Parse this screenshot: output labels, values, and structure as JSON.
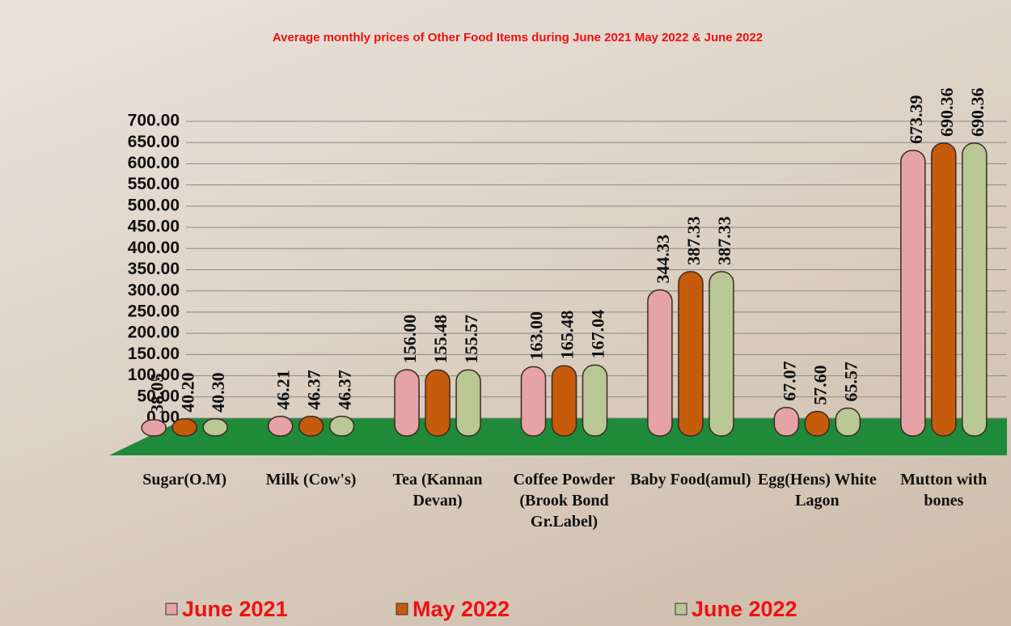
{
  "chart_data": {
    "type": "bar",
    "title": "Average monthly prices of Other Food Items during  June 2021  May 2022  &  June 2022",
    "categories": [
      "Sugar(O.M)",
      "Milk (Cow's)",
      "Tea (Kannan Devan)",
      "Coffee Powder (Brook Bond Gr.Label)",
      "Baby Food(amul)",
      "Egg(Hens) White Lagon",
      "Mutton with bones"
    ],
    "series": [
      {
        "name": "June 2021",
        "color": "#e6a3a6",
        "values": [
          38.05,
          46.21,
          156,
          163,
          344.33,
          67.07,
          673.39
        ],
        "value_labels": [
          "38.05",
          "46.21",
          "156.00",
          "163.00",
          "344.33",
          "67.07",
          "673.39"
        ]
      },
      {
        "name": "May 2022",
        "color": "#c65b0c",
        "values": [
          40.2,
          46.37,
          155.48,
          165.48,
          387.33,
          57.6,
          690.36
        ],
        "value_labels": [
          "40.20",
          "46.37",
          "155.48",
          "165.48",
          "387.33",
          "57.60",
          "690.36"
        ]
      },
      {
        "name": "June 2022",
        "color": "#b9c795",
        "values": [
          40.3,
          46.37,
          155.57,
          167.04,
          387.33,
          65.57,
          690.36
        ],
        "value_labels": [
          "40.30",
          "46.37",
          "155.57",
          "167.04",
          "387.33",
          "65.57",
          "690.36"
        ]
      }
    ],
    "ylim": [
      0,
      700
    ],
    "yticks": [
      {
        "value": 0,
        "label": "0.00"
      },
      {
        "value": 50,
        "label": "50.00"
      },
      {
        "value": 100,
        "label": "100.00"
      },
      {
        "value": 150,
        "label": "150.00"
      },
      {
        "value": 200,
        "label": "200.00"
      },
      {
        "value": 250,
        "label": "250.00"
      },
      {
        "value": 300,
        "label": "300.00"
      },
      {
        "value": 350,
        "label": "350.00"
      },
      {
        "value": 400,
        "label": "400.00"
      },
      {
        "value": 450,
        "label": "450.00"
      },
      {
        "value": 500,
        "label": "500.00"
      },
      {
        "value": 550,
        "label": "550.00"
      },
      {
        "value": 600,
        "label": "600.00"
      },
      {
        "value": 650,
        "label": "650.00"
      },
      {
        "value": 700,
        "label": "700.00"
      }
    ],
    "grid": true
  }
}
